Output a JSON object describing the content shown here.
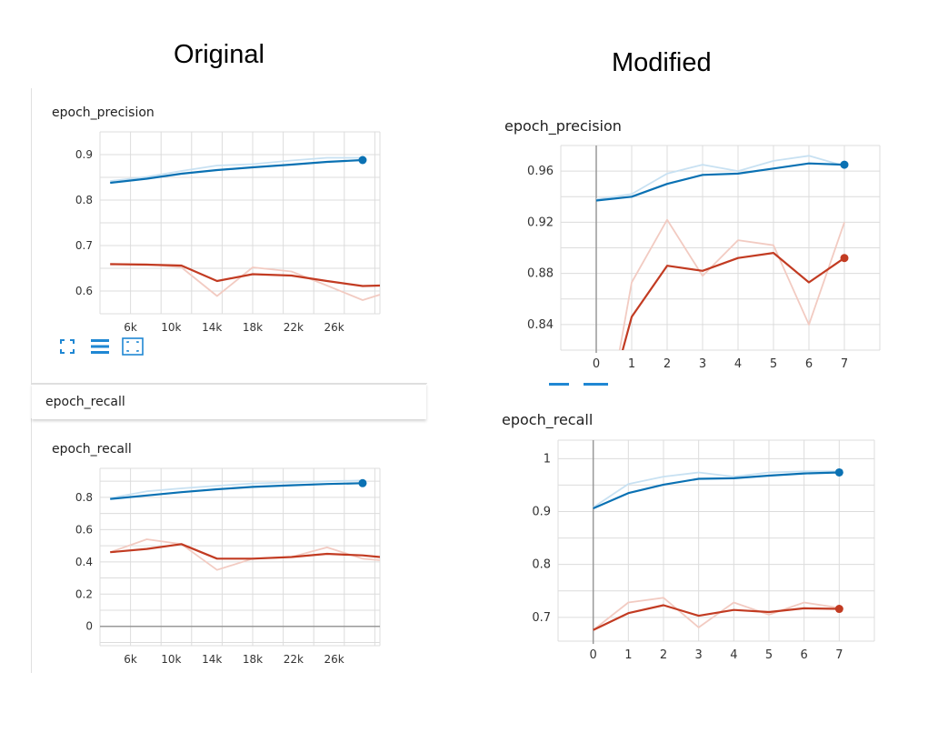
{
  "headings": {
    "original": "Original",
    "modified": "Modified"
  },
  "original": {
    "collapsed_card_title": "epoch_recall",
    "toolbar_icons": [
      "fit-to-screen-icon",
      "toggle-y-log-icon",
      "fit-domain-icon"
    ]
  },
  "modified": {
    "tab_icons": [
      "tab-indicator",
      "tab-indicator"
    ]
  },
  "colors": {
    "train_smoothed": "#0a71b3",
    "train_raw": "#c8e1f2",
    "val_smoothed": "#c23b22",
    "val_raw": "#f2cbc2",
    "grid": "#dcdcdc",
    "axis": "#999999",
    "tab": "#1f87d3"
  },
  "chart_data": [
    {
      "id": "orig-precision",
      "type": "line",
      "title": "epoch_precision",
      "xlim": [
        3000,
        30500
      ],
      "ylim": [
        0.55,
        0.95
      ],
      "xticks": [
        6000,
        10000,
        14000,
        18000,
        22000,
        26000
      ],
      "xtick_labels": [
        "6k",
        "10k",
        "14k",
        "18k",
        "22k",
        "26k"
      ],
      "yticks": [
        0.6,
        0.7,
        0.8,
        0.9
      ],
      "ytick_labels": [
        "0.6",
        "0.7",
        "0.8",
        "0.9"
      ],
      "zero_line": false,
      "series": [
        {
          "role": "train_raw",
          "x": [
            4000,
            7600,
            11000,
            14500,
            18000,
            21800,
            25300,
            28800
          ],
          "y": [
            0.842,
            0.851,
            0.864,
            0.876,
            0.879,
            0.887,
            0.893,
            0.893
          ]
        },
        {
          "role": "train_smoothed",
          "x": [
            4000,
            7600,
            11000,
            14500,
            18000,
            21800,
            25300,
            28800
          ],
          "y": [
            0.838,
            0.847,
            0.858,
            0.866,
            0.872,
            0.878,
            0.884,
            0.888
          ],
          "end_marker": true
        },
        {
          "role": "val_raw",
          "x": [
            4000,
            7600,
            11000,
            14500,
            18000,
            21800,
            25300,
            28800,
            30500
          ],
          "y": [
            0.66,
            0.659,
            0.652,
            0.589,
            0.652,
            0.643,
            0.612,
            0.58,
            0.592
          ]
        },
        {
          "role": "val_smoothed",
          "x": [
            4000,
            7600,
            11000,
            14500,
            18000,
            21800,
            25300,
            28800,
            30500
          ],
          "y": [
            0.659,
            0.658,
            0.656,
            0.622,
            0.637,
            0.634,
            0.622,
            0.611,
            0.612
          ]
        }
      ]
    },
    {
      "id": "orig-recall",
      "type": "line",
      "title": "epoch_recall",
      "xlim": [
        3000,
        30500
      ],
      "ylim": [
        -0.12,
        0.98
      ],
      "xticks": [
        6000,
        10000,
        14000,
        18000,
        22000,
        26000
      ],
      "xtick_labels": [
        "6k",
        "10k",
        "14k",
        "18k",
        "22k",
        "26k"
      ],
      "yticks": [
        0,
        0.2,
        0.4,
        0.6,
        0.8
      ],
      "ytick_labels": [
        "0",
        "0.2",
        "0.4",
        "0.6",
        "0.8"
      ],
      "zero_line": true,
      "series": [
        {
          "role": "train_raw",
          "x": [
            4000,
            7600,
            11000,
            14500,
            18000,
            21800,
            25300,
            28800
          ],
          "y": [
            0.795,
            0.838,
            0.856,
            0.872,
            0.886,
            0.893,
            0.9,
            0.905
          ]
        },
        {
          "role": "train_smoothed",
          "x": [
            4000,
            7600,
            11000,
            14500,
            18000,
            21800,
            25300,
            28800
          ],
          "y": [
            0.79,
            0.812,
            0.832,
            0.85,
            0.865,
            0.875,
            0.883,
            0.888
          ],
          "end_marker": true
        },
        {
          "role": "val_raw",
          "x": [
            4000,
            7600,
            11000,
            14500,
            18000,
            21800,
            25300,
            28800,
            30500
          ],
          "y": [
            0.46,
            0.54,
            0.51,
            0.35,
            0.42,
            0.43,
            0.49,
            0.42,
            0.41
          ]
        },
        {
          "role": "val_smoothed",
          "x": [
            4000,
            7600,
            11000,
            14500,
            18000,
            21800,
            25300,
            28800,
            30500
          ],
          "y": [
            0.46,
            0.48,
            0.51,
            0.42,
            0.42,
            0.43,
            0.45,
            0.44,
            0.43
          ]
        }
      ]
    },
    {
      "id": "mod-precision",
      "type": "line",
      "title": "epoch_precision",
      "xlim": [
        -1,
        8
      ],
      "ylim": [
        0.82,
        0.98
      ],
      "xticks": [
        0,
        1,
        2,
        3,
        4,
        5,
        6,
        7
      ],
      "xtick_labels": [
        "0",
        "1",
        "2",
        "3",
        "4",
        "5",
        "6",
        "7"
      ],
      "yticks": [
        0.84,
        0.88,
        0.92,
        0.96
      ],
      "ytick_labels": [
        "0.84",
        "0.88",
        "0.92",
        "0.96"
      ],
      "zero_line": false,
      "series": [
        {
          "role": "train_raw",
          "x": [
            0,
            1,
            2,
            3,
            4,
            5,
            6,
            7
          ],
          "y": [
            0.938,
            0.942,
            0.958,
            0.965,
            0.96,
            0.968,
            0.972,
            0.964
          ]
        },
        {
          "role": "train_smoothed",
          "x": [
            0,
            1,
            2,
            3,
            4,
            5,
            6,
            7
          ],
          "y": [
            0.937,
            0.94,
            0.95,
            0.957,
            0.958,
            0.962,
            0.966,
            0.965
          ],
          "end_marker": true
        },
        {
          "role": "val_raw",
          "x": [
            0.5,
            1,
            2,
            3,
            4,
            5,
            6,
            7
          ],
          "y": [
            0.795,
            0.873,
            0.922,
            0.878,
            0.906,
            0.902,
            0.84,
            0.92
          ]
        },
        {
          "role": "val_smoothed",
          "x": [
            0.5,
            1,
            2,
            3,
            4,
            5,
            6,
            7
          ],
          "y": [
            0.795,
            0.846,
            0.886,
            0.882,
            0.892,
            0.896,
            0.873,
            0.892
          ],
          "end_marker": true
        }
      ]
    },
    {
      "id": "mod-recall",
      "type": "line",
      "title": "epoch_recall",
      "xlim": [
        -1,
        8
      ],
      "ylim": [
        0.655,
        1.035
      ],
      "xticks": [
        0,
        1,
        2,
        3,
        4,
        5,
        6,
        7
      ],
      "xtick_labels": [
        "0",
        "1",
        "2",
        "3",
        "4",
        "5",
        "6",
        "7"
      ],
      "yticks": [
        0.7,
        0.8,
        0.9,
        1
      ],
      "ytick_labels": [
        "0.7",
        "0.8",
        "0.9",
        "1"
      ],
      "zero_line": false,
      "series": [
        {
          "role": "train_raw",
          "x": [
            0,
            1,
            2,
            3,
            4,
            5,
            6,
            7
          ],
          "y": [
            0.908,
            0.952,
            0.966,
            0.974,
            0.966,
            0.974,
            0.976,
            0.976
          ]
        },
        {
          "role": "train_smoothed",
          "x": [
            0,
            1,
            2,
            3,
            4,
            5,
            6,
            7
          ],
          "y": [
            0.906,
            0.935,
            0.951,
            0.962,
            0.963,
            0.968,
            0.972,
            0.974
          ],
          "end_marker": true
        },
        {
          "role": "val_raw",
          "x": [
            0,
            1,
            2,
            3,
            4,
            5,
            6,
            7
          ],
          "y": [
            0.676,
            0.728,
            0.737,
            0.681,
            0.728,
            0.705,
            0.728,
            0.718
          ]
        },
        {
          "role": "val_smoothed",
          "x": [
            0,
            1,
            2,
            3,
            4,
            5,
            6,
            7
          ],
          "y": [
            0.676,
            0.708,
            0.723,
            0.703,
            0.714,
            0.71,
            0.717,
            0.716
          ],
          "end_marker": true
        }
      ]
    }
  ]
}
